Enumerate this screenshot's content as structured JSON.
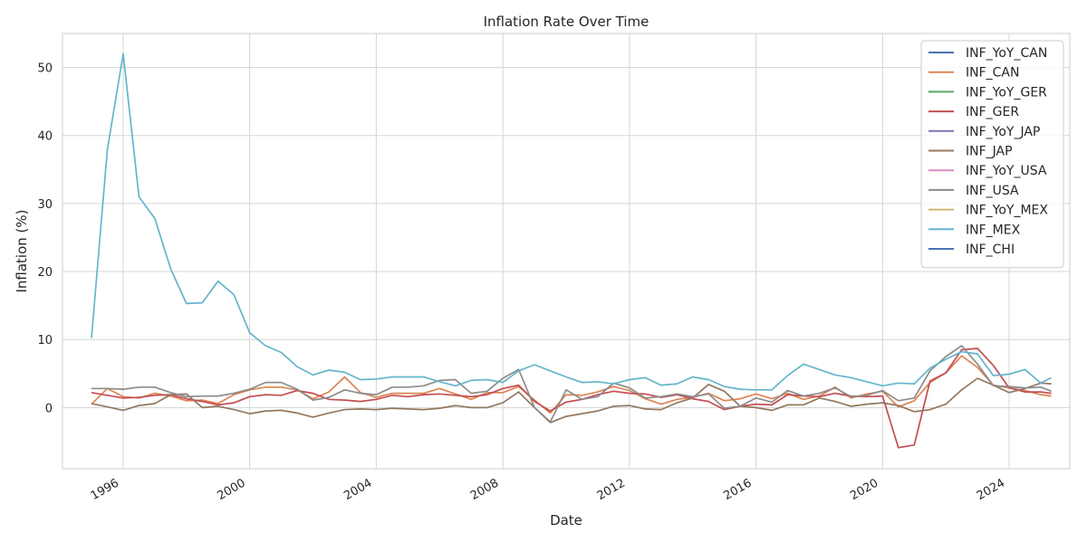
{
  "chart_data": {
    "type": "line",
    "title": "Inflation Rate Over Time",
    "xlabel": "Date",
    "ylabel": "Inflation (%)",
    "xlim": [
      "1994-02",
      "2025-12"
    ],
    "ylim": [
      -9,
      55
    ],
    "x_ticks": [
      "1996",
      "2000",
      "2004",
      "2008",
      "2012",
      "2016",
      "2020",
      "2024"
    ],
    "y_ticks": [
      0,
      10,
      20,
      30,
      40,
      50
    ],
    "grid": true,
    "legend_position": "top-right",
    "x": [
      "1995-01",
      "1995-07",
      "1996-01",
      "1996-07",
      "1997-01",
      "1997-07",
      "1998-01",
      "1998-07",
      "1999-01",
      "1999-07",
      "2000-01",
      "2000-07",
      "2001-01",
      "2001-07",
      "2002-01",
      "2002-07",
      "2003-01",
      "2003-07",
      "2004-01",
      "2004-07",
      "2005-01",
      "2005-07",
      "2006-01",
      "2006-07",
      "2007-01",
      "2007-07",
      "2008-01",
      "2008-07",
      "2009-01",
      "2009-07",
      "2010-01",
      "2010-07",
      "2011-01",
      "2011-07",
      "2012-01",
      "2012-07",
      "2013-01",
      "2013-07",
      "2014-01",
      "2014-07",
      "2015-01",
      "2015-07",
      "2016-01",
      "2016-07",
      "2017-01",
      "2017-07",
      "2018-01",
      "2018-07",
      "2019-01",
      "2019-07",
      "2020-01",
      "2020-07",
      "2021-01",
      "2021-07",
      "2022-01",
      "2022-07",
      "2023-01",
      "2023-07",
      "2024-01",
      "2024-07",
      "2025-01",
      "2025-05"
    ],
    "series": [
      {
        "name": "INF_YoY_CAN",
        "color": "#4c72b0",
        "values": [
          null,
          null,
          null,
          null,
          null,
          null,
          null,
          null,
          null,
          null,
          null,
          null,
          null,
          null,
          null,
          null,
          null,
          null,
          null,
          null,
          null,
          null,
          null,
          null,
          null,
          null,
          null,
          null,
          null,
          null,
          null,
          null,
          null,
          null,
          null,
          null,
          null,
          null,
          null,
          null,
          null,
          null,
          null,
          null,
          null,
          null,
          null,
          null,
          null,
          null,
          null,
          null,
          null,
          null,
          null,
          null,
          null,
          null,
          null,
          null,
          null,
          null
        ]
      },
      {
        "name": "INF_CAN",
        "color": "#dd8452",
        "values": [
          0.5,
          2.8,
          1.6,
          1.4,
          2.1,
          1.7,
          1.0,
          1.1,
          0.6,
          1.9,
          2.6,
          3.0,
          3.0,
          2.6,
          1.3,
          2.3,
          4.5,
          2.2,
          1.5,
          2.1,
          2.1,
          2.1,
          2.8,
          2.0,
          1.2,
          2.2,
          2.2,
          3.1,
          1.1,
          -0.8,
          1.9,
          1.8,
          2.3,
          3.1,
          2.5,
          1.3,
          0.5,
          1.2,
          1.5,
          2.1,
          1.0,
          1.3,
          2.0,
          1.3,
          2.1,
          1.2,
          1.7,
          3.0,
          1.4,
          2.0,
          2.4,
          0.1,
          1.0,
          3.7,
          5.1,
          7.6,
          5.9,
          3.3,
          2.9,
          2.5,
          1.9,
          1.7
        ]
      },
      {
        "name": "INF_YoY_GER",
        "color": "#55a868",
        "values": [
          null,
          null,
          null,
          null,
          null,
          null,
          null,
          null,
          null,
          null,
          null,
          null,
          null,
          null,
          null,
          null,
          null,
          null,
          null,
          null,
          null,
          null,
          null,
          null,
          null,
          null,
          null,
          null,
          null,
          null,
          null,
          null,
          null,
          null,
          null,
          null,
          null,
          null,
          null,
          null,
          null,
          null,
          null,
          null,
          null,
          null,
          null,
          null,
          null,
          null,
          null,
          null,
          null,
          null,
          null,
          null,
          null,
          null,
          null,
          null,
          null,
          null
        ]
      },
      {
        "name": "INF_GER",
        "color": "#c44e52",
        "values": [
          2.2,
          1.8,
          1.4,
          1.5,
          1.8,
          1.9,
          1.3,
          0.9,
          0.4,
          0.7,
          1.6,
          1.9,
          1.8,
          2.5,
          2.1,
          1.2,
          1.1,
          0.9,
          1.2,
          1.8,
          1.6,
          1.9,
          2.0,
          1.8,
          1.6,
          1.9,
          2.8,
          3.3,
          0.9,
          -0.5,
          0.8,
          1.2,
          1.9,
          2.4,
          2.1,
          2.0,
          1.5,
          1.9,
          1.3,
          0.9,
          -0.3,
          0.2,
          0.5,
          0.4,
          1.9,
          1.7,
          1.6,
          2.1,
          1.7,
          1.6,
          1.7,
          -5.9,
          -5.5,
          3.9,
          5.1,
          8.5,
          8.7,
          6.2,
          2.9,
          2.3,
          2.3,
          2.1
        ]
      },
      {
        "name": "INF_YoY_JAP",
        "color": "#8172b3",
        "values": [
          null,
          null,
          null,
          null,
          null,
          null,
          null,
          null,
          null,
          null,
          null,
          null,
          null,
          null,
          null,
          null,
          null,
          null,
          null,
          null,
          null,
          null,
          null,
          null,
          null,
          null,
          null,
          null,
          null,
          null,
          null,
          null,
          null,
          null,
          null,
          null,
          null,
          null,
          null,
          null,
          null,
          null,
          null,
          null,
          null,
          null,
          null,
          null,
          null,
          null,
          null,
          null,
          null,
          null,
          null,
          null,
          null,
          null,
          null,
          null,
          null,
          null
        ]
      },
      {
        "name": "INF_JAP",
        "color": "#937860",
        "values": [
          0.6,
          0.1,
          -0.4,
          0.3,
          0.6,
          1.9,
          2.0,
          0.0,
          0.2,
          -0.3,
          -0.9,
          -0.5,
          -0.4,
          -0.8,
          -1.4,
          -0.8,
          -0.3,
          -0.2,
          -0.3,
          -0.1,
          -0.2,
          -0.3,
          -0.1,
          0.3,
          0.0,
          0.0,
          0.7,
          2.3,
          0.0,
          -2.2,
          -1.3,
          -0.9,
          -0.5,
          0.2,
          0.3,
          -0.2,
          -0.3,
          0.7,
          1.4,
          3.4,
          2.4,
          0.2,
          0.0,
          -0.4,
          0.4,
          0.4,
          1.4,
          0.9,
          0.2,
          0.5,
          0.7,
          0.3,
          -0.6,
          -0.3,
          0.5,
          2.6,
          4.3,
          3.3,
          2.2,
          2.8,
          3.6,
          3.5
        ]
      },
      {
        "name": "INF_YoY_USA",
        "color": "#da8bc3",
        "values": [
          null,
          null,
          null,
          null,
          null,
          null,
          null,
          null,
          null,
          null,
          null,
          null,
          null,
          null,
          null,
          null,
          null,
          null,
          null,
          null,
          null,
          null,
          null,
          null,
          null,
          null,
          null,
          null,
          null,
          null,
          null,
          null,
          null,
          null,
          null,
          null,
          null,
          null,
          null,
          null,
          null,
          null,
          null,
          null,
          null,
          null,
          null,
          null,
          null,
          null,
          null,
          null,
          null,
          null,
          null,
          null,
          null,
          null,
          null,
          null,
          null,
          null
        ]
      },
      {
        "name": "INF_USA",
        "color": "#8c8c8c",
        "values": [
          2.8,
          2.8,
          2.7,
          3.0,
          3.0,
          2.2,
          1.6,
          1.7,
          1.7,
          2.1,
          2.7,
          3.7,
          3.7,
          2.7,
          1.1,
          1.5,
          2.6,
          2.1,
          1.9,
          3.0,
          3.0,
          3.2,
          4.0,
          4.1,
          2.1,
          2.4,
          4.3,
          5.6,
          0.0,
          -2.1,
          2.6,
          1.2,
          1.6,
          3.6,
          2.9,
          1.4,
          1.6,
          2.0,
          1.6,
          2.0,
          -0.1,
          0.2,
          1.4,
          0.8,
          2.5,
          1.7,
          2.1,
          2.9,
          1.6,
          1.8,
          2.5,
          1.0,
          1.4,
          5.4,
          7.5,
          9.1,
          6.4,
          3.2,
          3.1,
          2.9,
          3.0,
          2.4
        ]
      },
      {
        "name": "INF_YoY_MEX",
        "color": "#ccb974",
        "values": [
          null,
          null,
          null,
          null,
          null,
          null,
          null,
          null,
          null,
          null,
          null,
          null,
          null,
          null,
          null,
          null,
          null,
          null,
          null,
          null,
          null,
          null,
          null,
          null,
          null,
          null,
          null,
          null,
          null,
          null,
          null,
          null,
          null,
          null,
          null,
          null,
          null,
          null,
          null,
          null,
          null,
          null,
          null,
          null,
          null,
          null,
          null,
          null,
          null,
          null,
          null,
          null,
          null,
          null,
          null,
          null,
          null,
          null,
          null,
          null,
          null,
          null
        ]
      },
      {
        "name": "INF_MEX",
        "color": "#64b5cd",
        "values": [
          10.2,
          37.9,
          52.0,
          31.0,
          27.8,
          20.4,
          15.3,
          15.4,
          18.6,
          16.6,
          11.0,
          9.1,
          8.1,
          6.0,
          4.8,
          5.5,
          5.2,
          4.1,
          4.2,
          4.5,
          4.5,
          4.5,
          3.8,
          3.2,
          4.0,
          4.1,
          3.7,
          5.4,
          6.3,
          5.4,
          4.5,
          3.7,
          3.8,
          3.5,
          4.1,
          4.4,
          3.3,
          3.5,
          4.5,
          4.1,
          3.1,
          2.7,
          2.6,
          2.6,
          4.7,
          6.4,
          5.6,
          4.8,
          4.4,
          3.8,
          3.2,
          3.6,
          3.5,
          5.8,
          7.1,
          8.2,
          7.9,
          4.7,
          4.9,
          5.6,
          3.6,
          4.4
        ]
      },
      {
        "name": "INF_CHI",
        "color": "#4c72b0",
        "values": [
          null,
          null,
          null,
          null,
          null,
          null,
          null,
          null,
          null,
          null,
          null,
          null,
          null,
          null,
          null,
          null,
          null,
          null,
          null,
          null,
          null,
          null,
          null,
          null,
          null,
          null,
          null,
          null,
          null,
          null,
          null,
          null,
          null,
          null,
          null,
          null,
          null,
          null,
          null,
          null,
          null,
          null,
          null,
          null,
          null,
          null,
          null,
          null,
          null,
          null,
          null,
          null,
          null,
          null,
          null,
          null,
          null,
          null,
          null,
          null,
          null,
          null
        ]
      }
    ]
  }
}
